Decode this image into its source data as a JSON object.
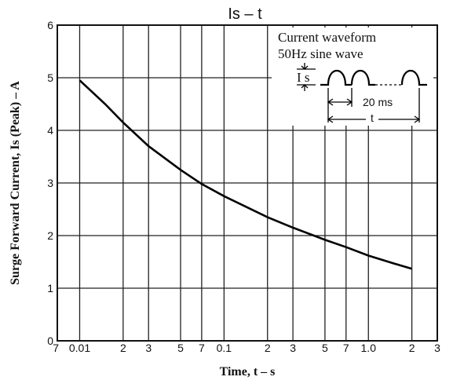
{
  "chart_data": {
    "type": "line",
    "title": "Is  –  t",
    "xlabel": "Time, t – s",
    "ylabel": "Surge Forward Current, Is (Peak) – A",
    "xscale": "log",
    "xlim": [
      0.007,
      3
    ],
    "ylim": [
      0,
      6
    ],
    "grid": true,
    "x_ticks": [
      {
        "value": 0.007,
        "label": "7"
      },
      {
        "value": 0.01,
        "label": "0.01"
      },
      {
        "value": 0.02,
        "label": "2"
      },
      {
        "value": 0.03,
        "label": "3"
      },
      {
        "value": 0.05,
        "label": "5"
      },
      {
        "value": 0.07,
        "label": "7"
      },
      {
        "value": 0.1,
        "label": "0.1"
      },
      {
        "value": 0.2,
        "label": "2"
      },
      {
        "value": 0.3,
        "label": "3"
      },
      {
        "value": 0.5,
        "label": "5"
      },
      {
        "value": 0.7,
        "label": "7"
      },
      {
        "value": 1.0,
        "label": "1.0"
      },
      {
        "value": 2,
        "label": "2"
      },
      {
        "value": 3,
        "label": "3"
      }
    ],
    "y_ticks": [
      {
        "value": 0,
        "label": "0"
      },
      {
        "value": 1,
        "label": "1"
      },
      {
        "value": 2,
        "label": "2"
      },
      {
        "value": 3,
        "label": "3"
      },
      {
        "value": 4,
        "label": "4"
      },
      {
        "value": 5,
        "label": "5"
      },
      {
        "value": 6,
        "label": "6"
      }
    ],
    "series": [
      {
        "x": [
          0.01,
          0.015,
          0.02,
          0.03,
          0.05,
          0.07,
          0.1,
          0.2,
          0.3,
          0.5,
          0.7,
          1.0,
          1.5,
          2.0
        ],
        "y": [
          4.95,
          4.5,
          4.15,
          3.7,
          3.25,
          2.98,
          2.75,
          2.35,
          2.15,
          1.92,
          1.78,
          1.62,
          1.47,
          1.37
        ],
        "color": "#000000"
      }
    ],
    "annotation": {
      "line1": "Current waveform",
      "line2": "50Hz sine wave",
      "is_label": "I s",
      "period_label": "20 ms",
      "t_label": "t"
    }
  }
}
